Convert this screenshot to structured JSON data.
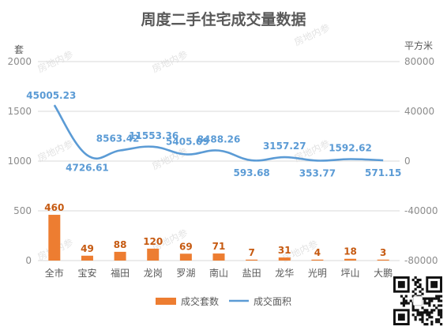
{
  "chart_data": {
    "type": "bar",
    "title": "周度二手住宅成交量数据",
    "categories": [
      "全市",
      "宝安",
      "福田",
      "龙岗",
      "罗湖",
      "南山",
      "盐田",
      "龙华",
      "光明",
      "坪山",
      "大鹏"
    ],
    "y_left": {
      "unit_label": "套",
      "range": [
        0,
        2000
      ],
      "ticks": [
        "0",
        "500",
        "1000",
        "1500",
        "2000"
      ]
    },
    "y_right": {
      "unit_label": "平方米",
      "range": [
        -80000,
        80000
      ],
      "ticks": [
        "-80000",
        "-40000",
        "0",
        "40000",
        "80000"
      ]
    },
    "series": [
      {
        "name": "成交套数",
        "type": "bar",
        "axis": "left",
        "color": "#ed7d31",
        "values": [
          460,
          49,
          88,
          120,
          69,
          71,
          7,
          31,
          4,
          18,
          3
        ],
        "labels": [
          "460",
          "49",
          "88",
          "120",
          "69",
          "71",
          "7",
          "31",
          "4",
          "18",
          "3"
        ]
      },
      {
        "name": "成交面积",
        "type": "line",
        "axis": "right",
        "color": "#5b9bd5",
        "values": [
          45005.23,
          4726.61,
          8563.42,
          11553.36,
          5405.09,
          8488.26,
          593.68,
          3157.27,
          353.77,
          1592.62,
          571.15
        ],
        "labels": [
          "45005.23",
          "4726.61",
          "8563.42",
          "11553.36",
          "5405.09",
          "8488.26",
          "593.68",
          "3157.27",
          "353.77",
          "1592.62",
          "571.15"
        ]
      }
    ],
    "grid": true,
    "legend_position": "bottom"
  },
  "watermark": "房地内参",
  "qr_icon": "qr-code-icon"
}
